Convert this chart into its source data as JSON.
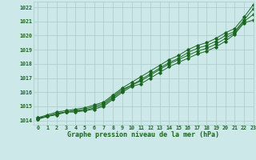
{
  "title": "Graphe pression niveau de la mer (hPa)",
  "x_labels": [
    "0",
    "1",
    "2",
    "3",
    "4",
    "5",
    "6",
    "7",
    "8",
    "9",
    "10",
    "11",
    "12",
    "13",
    "14",
    "15",
    "16",
    "17",
    "18",
    "19",
    "20",
    "21",
    "22",
    "23"
  ],
  "xlim": [
    -0.5,
    23
  ],
  "ylim": [
    1013.7,
    1022.4
  ],
  "yticks": [
    1014,
    1015,
    1016,
    1017,
    1018,
    1019,
    1020,
    1021,
    1022
  ],
  "bg_color": "#cce8e8",
  "grid_color": "#aacccc",
  "line_color": "#1a6620",
  "marker_color": "#1a6620",
  "title_color": "#1a6620",
  "series1": [
    1014.1,
    1014.3,
    1014.4,
    1014.6,
    1014.6,
    1014.7,
    1014.8,
    1015.0,
    1015.5,
    1016.0,
    1016.4,
    1016.6,
    1017.0,
    1017.4,
    1017.8,
    1018.1,
    1018.4,
    1018.7,
    1018.9,
    1019.2,
    1019.6,
    1020.1,
    1020.9,
    1021.1
  ],
  "series2": [
    1014.1,
    1014.3,
    1014.5,
    1014.6,
    1014.7,
    1014.7,
    1014.9,
    1015.1,
    1015.6,
    1016.1,
    1016.5,
    1016.8,
    1017.2,
    1017.6,
    1018.0,
    1018.3,
    1018.6,
    1018.9,
    1019.1,
    1019.4,
    1019.8,
    1020.2,
    1021.0,
    1021.5
  ],
  "series3": [
    1014.2,
    1014.3,
    1014.5,
    1014.6,
    1014.7,
    1014.8,
    1015.0,
    1015.2,
    1015.7,
    1016.2,
    1016.5,
    1016.9,
    1017.3,
    1017.7,
    1018.1,
    1018.4,
    1018.8,
    1019.1,
    1019.3,
    1019.6,
    1020.0,
    1020.3,
    1021.1,
    1021.9
  ],
  "series4": [
    1014.2,
    1014.4,
    1014.6,
    1014.7,
    1014.8,
    1014.9,
    1015.1,
    1015.3,
    1015.8,
    1016.3,
    1016.7,
    1017.1,
    1017.5,
    1017.9,
    1018.3,
    1018.6,
    1019.0,
    1019.3,
    1019.5,
    1019.8,
    1020.2,
    1020.5,
    1021.3,
    1022.2
  ]
}
